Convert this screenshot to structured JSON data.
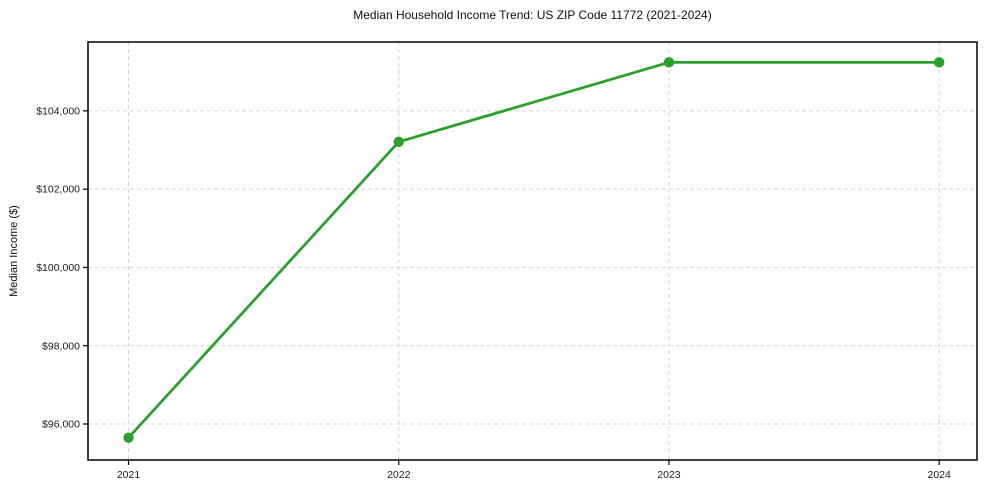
{
  "page": {
    "background_color": "#ffffff"
  },
  "chart_data": {
    "type": "line",
    "title": "Median Household Income Trend: US ZIP Code 11772 (2021-2024)",
    "xlabel": "",
    "ylabel": "Median Income ($)",
    "x": [
      2021,
      2022,
      2023,
      2024
    ],
    "values": [
      95650,
      103210,
      105240,
      105240
    ],
    "x_tick_labels": [
      "2021",
      "2022",
      "2023",
      "2024"
    ],
    "y_ticks": [
      96000,
      98000,
      100000,
      102000,
      104000
    ],
    "y_tick_labels": [
      "$96,000",
      "$98,000",
      "$100,000",
      "$102,000",
      "$104,000"
    ],
    "xlim": [
      2020.85,
      2024.14
    ],
    "ylim": [
      95080,
      105760
    ],
    "line_color": "#2ca02c",
    "marker": "circle",
    "marker_color": "#2ca02c",
    "grid": true,
    "grid_style": "dashed",
    "grid_color": "#d4d4d4",
    "frame_color": "#000000",
    "legend": "none"
  }
}
